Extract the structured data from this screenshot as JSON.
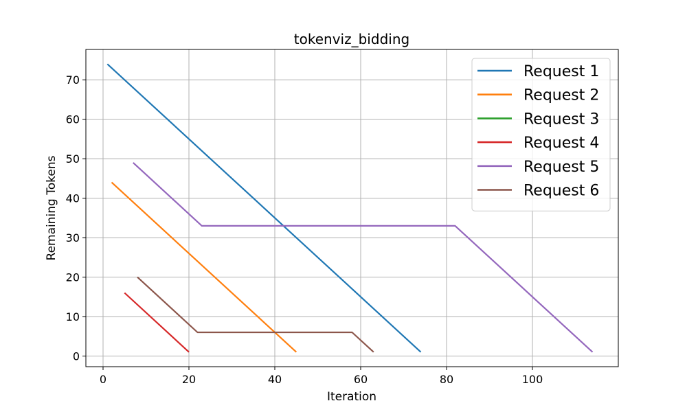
{
  "chart_data": {
    "type": "line",
    "title": "tokenviz_bidding",
    "xlabel": "Iteration",
    "ylabel": "Remaining Tokens",
    "xlim": [
      -4,
      120
    ],
    "ylim": [
      -2.7,
      77.7
    ],
    "xticks": [
      0,
      20,
      40,
      60,
      80,
      100
    ],
    "yticks": [
      0,
      10,
      20,
      30,
      40,
      50,
      60,
      70
    ],
    "grid": true,
    "legend_position": "top-right",
    "series": [
      {
        "name": "Request 1",
        "color": "#1f77b4",
        "points": [
          [
            1,
            74
          ],
          [
            74,
            1
          ]
        ]
      },
      {
        "name": "Request 2",
        "color": "#ff7f0e",
        "points": [
          [
            2,
            44
          ],
          [
            45,
            1
          ]
        ]
      },
      {
        "name": "Request 3",
        "color": "#2ca02c",
        "points": []
      },
      {
        "name": "Request 4",
        "color": "#d62728",
        "points": [
          [
            5,
            16
          ],
          [
            20,
            1
          ]
        ]
      },
      {
        "name": "Request 5",
        "color": "#9467bd",
        "points": [
          [
            7,
            49
          ],
          [
            23,
            33
          ],
          [
            82,
            33
          ],
          [
            114,
            1
          ]
        ]
      },
      {
        "name": "Request 6",
        "color": "#8c564b",
        "points": [
          [
            8,
            20
          ],
          [
            22,
            6
          ],
          [
            58,
            6
          ],
          [
            63,
            1
          ]
        ]
      }
    ]
  }
}
